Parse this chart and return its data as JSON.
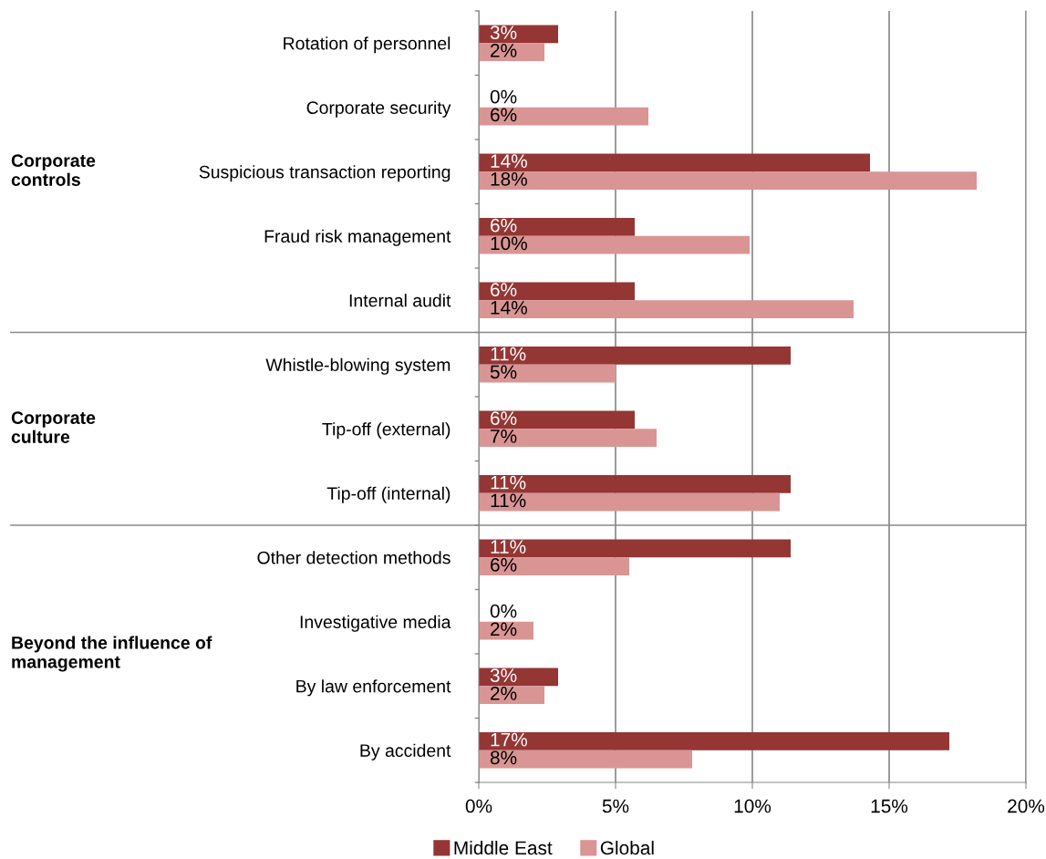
{
  "chart_data": {
    "type": "bar",
    "orientation": "horizontal",
    "categories": [
      "Rotation of personnel",
      "Corporate security",
      "Suspicious transaction reporting",
      "Fraud risk management",
      "Internal audit",
      "Whistle-blowing system",
      "Tip-off (external)",
      "Tip-off (internal)",
      "Other detection methods",
      "Investigative media",
      "By law enforcement",
      "By accident"
    ],
    "series": [
      {
        "name": "Middle East",
        "color": "#943634",
        "values": [
          2.9,
          0,
          14.3,
          5.7,
          5.7,
          11.4,
          5.7,
          11.4,
          11.4,
          0,
          2.9,
          17.2
        ],
        "value_labels": [
          "3%",
          "0%",
          "14%",
          "6%",
          "6%",
          "11%",
          "6%",
          "11%",
          "11%",
          "0%",
          "3%",
          "17%"
        ]
      },
      {
        "name": "Global",
        "color": "#d99594",
        "values": [
          2.4,
          6.2,
          18.2,
          9.9,
          13.7,
          5.0,
          6.5,
          11.0,
          5.5,
          2.0,
          2.4,
          7.8
        ],
        "value_labels": [
          "2%",
          "6%",
          "18%",
          "10%",
          "14%",
          "5%",
          "7%",
          "11%",
          "6%",
          "2%",
          "2%",
          "8%"
        ]
      }
    ],
    "xlim": [
      0,
      20
    ],
    "xticks": [
      {
        "value": 0,
        "label": "0%"
      },
      {
        "value": 5,
        "label": "5%"
      },
      {
        "value": 10,
        "label": "10%"
      },
      {
        "value": 15,
        "label": "15%"
      },
      {
        "value": 20,
        "label": "20%"
      }
    ],
    "grid": "x",
    "legend": "bottom",
    "annotations": [
      "Corporate controls",
      "Corporate culture",
      "Beyond the influence of management"
    ]
  }
}
